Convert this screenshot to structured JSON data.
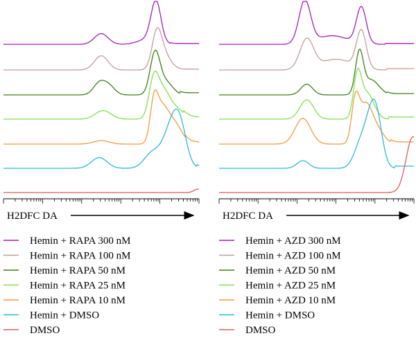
{
  "chart_data": [
    {
      "type": "line",
      "subtype": "flow-cytometry-histogram-overlay",
      "xlabel": "H2DFC DA",
      "x_scale": "log",
      "x_range": [
        0,
        1
      ],
      "y_range": [
        0,
        1
      ],
      "series": [
        {
          "name": "Hemin + RAPA 300 nM",
          "color": "#a11db5",
          "peaks": [
            {
              "x": 0.5,
              "h": 0.25,
              "w": 0.035
            },
            {
              "x": 0.78,
              "h": 0.95,
              "w": 0.025
            },
            {
              "x": 0.74,
              "h": 0.12,
              "w": 0.05
            }
          ],
          "tail": {
            "x": 0.85,
            "h": 0.02
          }
        },
        {
          "name": "Hemin + RAPA 100 nM",
          "color": "#c99a9a",
          "peaks": [
            {
              "x": 0.5,
              "h": 0.33,
              "w": 0.035
            },
            {
              "x": 0.785,
              "h": 0.88,
              "w": 0.025
            },
            {
              "x": 0.83,
              "h": 0.3,
              "w": 0.03
            }
          ],
          "tail": {
            "x": 0.87,
            "h": 0.02
          }
        },
        {
          "name": "Hemin + RAPA 50 nM",
          "color": "#3e7d14",
          "peaks": [
            {
              "x": 0.49,
              "h": 0.27,
              "w": 0.03
            },
            {
              "x": 0.54,
              "h": 0.2,
              "w": 0.03
            },
            {
              "x": 0.775,
              "h": 0.95,
              "w": 0.025
            },
            {
              "x": 0.83,
              "h": 0.3,
              "w": 0.035
            }
          ],
          "tail": {
            "x": 0.9,
            "h": 0.05
          }
        },
        {
          "name": "Hemin + RAPA 25 nM",
          "color": "#7fe24c",
          "peaks": [
            {
              "x": 0.51,
              "h": 0.2,
              "w": 0.04
            },
            {
              "x": 0.77,
              "h": 0.95,
              "w": 0.025
            },
            {
              "x": 0.82,
              "h": 0.55,
              "w": 0.03
            },
            {
              "x": 0.88,
              "h": 0.25,
              "w": 0.04
            }
          ],
          "tail": {
            "x": 0.92,
            "h": 0.05
          }
        },
        {
          "name": "Hemin + RAPA 10 nM",
          "color": "#f39a3c",
          "peaks": [
            {
              "x": 0.5,
              "h": 0.08,
              "w": 0.04
            },
            {
              "x": 0.77,
              "h": 0.9,
              "w": 0.02
            },
            {
              "x": 0.81,
              "h": 0.7,
              "w": 0.03
            },
            {
              "x": 0.87,
              "h": 0.5,
              "w": 0.04
            }
          ],
          "tail": {
            "x": 0.93,
            "h": 0.05
          }
        },
        {
          "name": "Hemin + DMSO",
          "color": "#2bb7e0",
          "peaks": [
            {
              "x": 0.49,
              "h": 0.25,
              "w": 0.04
            },
            {
              "x": 0.76,
              "h": 0.35,
              "w": 0.04
            },
            {
              "x": 0.85,
              "h": 0.75,
              "w": 0.04
            },
            {
              "x": 0.9,
              "h": 0.95,
              "w": 0.035
            }
          ],
          "tail": {
            "x": 0.99,
            "h": 0.05
          }
        },
        {
          "name": "DMSO",
          "color": "#e05a5a",
          "peaks": [
            {
              "x": 0.995,
              "h": 0.08,
              "w": 0.02
            }
          ],
          "tail": {
            "x": 1.0,
            "h": 0.0
          }
        }
      ]
    },
    {
      "type": "line",
      "subtype": "flow-cytometry-histogram-overlay",
      "xlabel": "H2DFC DA",
      "x_scale": "log",
      "x_range": [
        0,
        1
      ],
      "y_range": [
        0,
        1
      ],
      "series": [
        {
          "name": "Hemin + AZD 300 nM",
          "color": "#a11db5",
          "peaks": [
            {
              "x": 0.44,
              "h": 1.0,
              "w": 0.03
            },
            {
              "x": 0.73,
              "h": 0.85,
              "w": 0.025
            },
            {
              "x": 0.58,
              "h": 0.2,
              "w": 0.08
            }
          ],
          "tail": {
            "x": 0.85,
            "h": 0.02
          }
        },
        {
          "name": "Hemin + AZD 100 nM",
          "color": "#c99a9a",
          "peaks": [
            {
              "x": 0.45,
              "h": 0.7,
              "w": 0.035
            },
            {
              "x": 0.73,
              "h": 0.88,
              "w": 0.025
            },
            {
              "x": 0.6,
              "h": 0.25,
              "w": 0.08
            }
          ],
          "tail": {
            "x": 0.86,
            "h": 0.03
          }
        },
        {
          "name": "Hemin + AZD 50 nM",
          "color": "#3e7d14",
          "peaks": [
            {
              "x": 0.45,
              "h": 0.25,
              "w": 0.03
            },
            {
              "x": 0.72,
              "h": 0.95,
              "w": 0.02
            },
            {
              "x": 0.78,
              "h": 0.35,
              "w": 0.04
            }
          ],
          "tail": {
            "x": 0.86,
            "h": 0.03
          }
        },
        {
          "name": "Hemin + AZD 25 nM",
          "color": "#7fe24c",
          "peaks": [
            {
              "x": 0.45,
              "h": 0.45,
              "w": 0.035
            },
            {
              "x": 0.71,
              "h": 0.95,
              "w": 0.02
            },
            {
              "x": 0.76,
              "h": 0.6,
              "w": 0.035
            }
          ],
          "tail": {
            "x": 0.87,
            "h": 0.05
          }
        },
        {
          "name": "Hemin + AZD 10 nM",
          "color": "#f39a3c",
          "peaks": [
            {
              "x": 0.43,
              "h": 0.6,
              "w": 0.04
            },
            {
              "x": 0.7,
              "h": 1.0,
              "w": 0.02
            },
            {
              "x": 0.75,
              "h": 0.75,
              "w": 0.03
            },
            {
              "x": 0.8,
              "h": 0.4,
              "w": 0.04
            }
          ],
          "tail": {
            "x": 0.88,
            "h": 0.05
          }
        },
        {
          "name": "Hemin + DMSO",
          "color": "#2bb7e0",
          "peaks": [
            {
              "x": 0.43,
              "h": 0.18,
              "w": 0.03
            },
            {
              "x": 0.73,
              "h": 0.6,
              "w": 0.035
            },
            {
              "x": 0.81,
              "h": 0.95,
              "w": 0.03
            },
            {
              "x": 0.78,
              "h": 0.75,
              "w": 0.03
            }
          ],
          "tail": {
            "x": 0.9,
            "h": 0.05
          }
        },
        {
          "name": "DMSO",
          "color": "#e05a5a",
          "peaks": [
            {
              "x": 0.995,
              "h": 1.3,
              "w": 0.035
            }
          ],
          "tail": {
            "x": 1.0,
            "h": 0.0
          }
        }
      ]
    }
  ]
}
